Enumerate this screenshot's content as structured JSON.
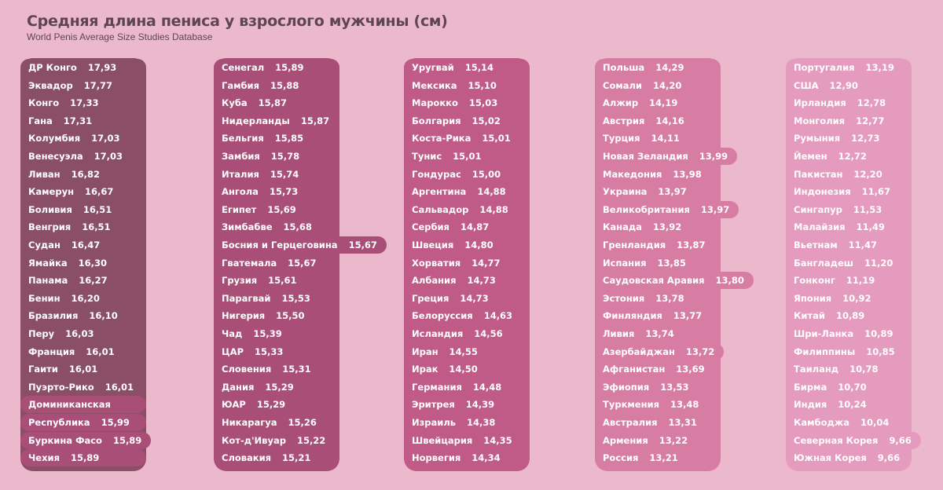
{
  "title": "Средняя длина пениса у взрослого мужчины (см)",
  "subtitle": "World Penis Average Size Studies Database",
  "colors": {
    "background": "#ecb8cc",
    "c1": "#8a4e66",
    "c2": "#a94e76",
    "c3": "#c05a86",
    "c4": "#d77da4",
    "c5": "#e59bbd",
    "text": "#ffffff",
    "title": "#5e4651"
  },
  "chart_data": {
    "type": "bar",
    "title": "Средняя длина пениса у взрослого мужчины (см)",
    "subtitle": "World Penis Average Size Studies Database",
    "columns": [
      {
        "color": "c1",
        "rows": [
          {
            "country": "ДР Конго",
            "value": "17,93",
            "v": 17.93
          },
          {
            "country": "Эквадор",
            "value": "17,77",
            "v": 17.77
          },
          {
            "country": "Конго",
            "value": "17,33",
            "v": 17.33
          },
          {
            "country": "Гана",
            "value": "17,31",
            "v": 17.31
          },
          {
            "country": "Колумбия",
            "value": "17,03",
            "v": 17.03
          },
          {
            "country": "Венесуэла",
            "value": "17,03",
            "v": 17.03
          },
          {
            "country": "Ливан",
            "value": "16,82",
            "v": 16.82
          },
          {
            "country": "Камерун",
            "value": "16,67",
            "v": 16.67
          },
          {
            "country": "Боливия",
            "value": "16,51",
            "v": 16.51
          },
          {
            "country": "Венгрия",
            "value": "16,51",
            "v": 16.51
          },
          {
            "country": "Судан",
            "value": "16,47",
            "v": 16.47
          },
          {
            "country": "Ямайка",
            "value": "16,30",
            "v": 16.3
          },
          {
            "country": "Панама",
            "value": "16,27",
            "v": 16.27
          },
          {
            "country": "Бенин",
            "value": "16,20",
            "v": 16.2
          },
          {
            "country": "Бразилия",
            "value": "16,10",
            "v": 16.1
          },
          {
            "country": "Перу",
            "value": "16,03",
            "v": 16.03
          },
          {
            "country": "Франция",
            "value": "16,01",
            "v": 16.01
          },
          {
            "country": "Гаити",
            "value": "16,01",
            "v": 16.01
          },
          {
            "country": "Пуэрто-Рико",
            "value": "16,01",
            "v": 16.01
          },
          {
            "country": "Доминиканская",
            "value": "",
            "v": 15.99,
            "color": "c2"
          },
          {
            "country": "Республика",
            "value": "15,99",
            "v": 15.99,
            "color": "c2"
          },
          {
            "country": "Буркина Фасо",
            "value": "15,89",
            "v": 15.89,
            "color": "c2"
          },
          {
            "country": "Чехия",
            "value": "15,89",
            "v": 15.89,
            "color": "c2"
          }
        ]
      },
      {
        "color": "c2",
        "rows": [
          {
            "country": "Сенегал",
            "value": "15,89",
            "v": 15.89
          },
          {
            "country": "Гамбия",
            "value": "15,88",
            "v": 15.88
          },
          {
            "country": "Куба",
            "value": "15,87",
            "v": 15.87
          },
          {
            "country": "Нидерланды",
            "value": "15,87",
            "v": 15.87
          },
          {
            "country": "Бельгия",
            "value": "15,85",
            "v": 15.85
          },
          {
            "country": "Замбия",
            "value": "15,78",
            "v": 15.78
          },
          {
            "country": "Италия",
            "value": "15,74",
            "v": 15.74
          },
          {
            "country": "Ангола",
            "value": "15,73",
            "v": 15.73
          },
          {
            "country": "Египет",
            "value": "15,69",
            "v": 15.69
          },
          {
            "country": "Зимбабве",
            "value": "15,68",
            "v": 15.68
          },
          {
            "country": "Босния и Герцеговина",
            "value": "15,67",
            "v": 15.67
          },
          {
            "country": "Гватемала",
            "value": "15,67",
            "v": 15.67
          },
          {
            "country": "Грузия",
            "value": "15,61",
            "v": 15.61
          },
          {
            "country": "Парагвай",
            "value": "15,53",
            "v": 15.53
          },
          {
            "country": "Нигерия",
            "value": "15,50",
            "v": 15.5
          },
          {
            "country": "Чад",
            "value": "15,39",
            "v": 15.39
          },
          {
            "country": "ЦАР",
            "value": "15,33",
            "v": 15.33
          },
          {
            "country": "Словения",
            "value": "15,31",
            "v": 15.31
          },
          {
            "country": "Дания",
            "value": "15,29",
            "v": 15.29
          },
          {
            "country": "ЮАР",
            "value": "15,29",
            "v": 15.29
          },
          {
            "country": "Никарагуа",
            "value": "15,26",
            "v": 15.26
          },
          {
            "country": "Кот-д'Ивуар",
            "value": "15,22",
            "v": 15.22
          },
          {
            "country": "Словакия",
            "value": "15,21",
            "v": 15.21
          }
        ]
      },
      {
        "color": "c3",
        "rows": [
          {
            "country": "Уругвай",
            "value": "15,14",
            "v": 15.14
          },
          {
            "country": "Мексика",
            "value": "15,10",
            "v": 15.1
          },
          {
            "country": "Марокко",
            "value": "15,03",
            "v": 15.03
          },
          {
            "country": "Болгария",
            "value": "15,02",
            "v": 15.02
          },
          {
            "country": "Коста-Рика",
            "value": "15,01",
            "v": 15.01
          },
          {
            "country": "Тунис",
            "value": "15,01",
            "v": 15.01
          },
          {
            "country": "Гондурас",
            "value": "15,00",
            "v": 15.0
          },
          {
            "country": "Аргентина",
            "value": "14,88",
            "v": 14.88
          },
          {
            "country": "Сальвадор",
            "value": "14,88",
            "v": 14.88
          },
          {
            "country": "Сербия",
            "value": "14,87",
            "v": 14.87
          },
          {
            "country": "Швеция",
            "value": "14,80",
            "v": 14.8
          },
          {
            "country": "Хорватия",
            "value": "14,77",
            "v": 14.77
          },
          {
            "country": "Албания",
            "value": "14,73",
            "v": 14.73
          },
          {
            "country": "Греция",
            "value": "14,73",
            "v": 14.73
          },
          {
            "country": "Белоруссия",
            "value": "14,63",
            "v": 14.63
          },
          {
            "country": "Исландия",
            "value": "14,56",
            "v": 14.56
          },
          {
            "country": "Иран",
            "value": "14,55",
            "v": 14.55
          },
          {
            "country": "Ирак",
            "value": "14,50",
            "v": 14.5
          },
          {
            "country": "Германия",
            "value": "14,48",
            "v": 14.48
          },
          {
            "country": "Эритрея",
            "value": "14,39",
            "v": 14.39
          },
          {
            "country": "Израиль",
            "value": "14,38",
            "v": 14.38
          },
          {
            "country": "Швейцария",
            "value": "14,35",
            "v": 14.35
          },
          {
            "country": "Норвегия",
            "value": "14,34",
            "v": 14.34
          }
        ]
      },
      {
        "color": "c4",
        "rows": [
          {
            "country": "Польша",
            "value": "14,29",
            "v": 14.29
          },
          {
            "country": "Сомали",
            "value": "14,20",
            "v": 14.2
          },
          {
            "country": "Алжир",
            "value": "14,19",
            "v": 14.19
          },
          {
            "country": "Австрия",
            "value": "14,16",
            "v": 14.16
          },
          {
            "country": "Турция",
            "value": "14,11",
            "v": 14.11
          },
          {
            "country": "Новая Зеландия",
            "value": "13,99",
            "v": 13.99
          },
          {
            "country": "Македония",
            "value": "13,98",
            "v": 13.98
          },
          {
            "country": "Украина",
            "value": "13,97",
            "v": 13.97
          },
          {
            "country": "Великобритания",
            "value": "13,97",
            "v": 13.97
          },
          {
            "country": "Канада",
            "value": "13,92",
            "v": 13.92
          },
          {
            "country": "Гренландия",
            "value": "13,87",
            "v": 13.87
          },
          {
            "country": "Испания",
            "value": "13,85",
            "v": 13.85
          },
          {
            "country": "Саудовская Аравия",
            "value": "13,80",
            "v": 13.8
          },
          {
            "country": "Эстония",
            "value": "13,78",
            "v": 13.78
          },
          {
            "country": "Финляндия",
            "value": "13,77",
            "v": 13.77
          },
          {
            "country": "Ливия",
            "value": "13,74",
            "v": 13.74
          },
          {
            "country": "Азербайджан",
            "value": "13,72",
            "v": 13.72
          },
          {
            "country": "Афганистан",
            "value": "13,69",
            "v": 13.69
          },
          {
            "country": "Эфиопия",
            "value": "13,53",
            "v": 13.53
          },
          {
            "country": "Туркмения",
            "value": "13,48",
            "v": 13.48
          },
          {
            "country": "Австралия",
            "value": "13,31",
            "v": 13.31
          },
          {
            "country": "Армения",
            "value": "13,22",
            "v": 13.22
          },
          {
            "country": "Россия",
            "value": "13,21",
            "v": 13.21
          }
        ]
      },
      {
        "color": "c5",
        "rows": [
          {
            "country": "Португалия",
            "value": "13,19",
            "v": 13.19
          },
          {
            "country": "США",
            "value": "12,90",
            "v": 12.9
          },
          {
            "country": "Ирландия",
            "value": "12,78",
            "v": 12.78
          },
          {
            "country": "Монголия",
            "value": "12,77",
            "v": 12.77
          },
          {
            "country": "Румыния",
            "value": "12,73",
            "v": 12.73
          },
          {
            "country": "Йемен",
            "value": "12,72",
            "v": 12.72
          },
          {
            "country": "Пакистан",
            "value": "12,20",
            "v": 12.2
          },
          {
            "country": "Индонезия",
            "value": "11,67",
            "v": 11.67
          },
          {
            "country": "Сингапур",
            "value": "11,53",
            "v": 11.53
          },
          {
            "country": "Малайзия",
            "value": "11,49",
            "v": 11.49
          },
          {
            "country": "Вьетнам",
            "value": "11,47",
            "v": 11.47
          },
          {
            "country": "Бангладеш",
            "value": "11,20",
            "v": 11.2
          },
          {
            "country": "Гонконг",
            "value": "11,19",
            "v": 11.19
          },
          {
            "country": "Япония",
            "value": "10,92",
            "v": 10.92
          },
          {
            "country": "Китай",
            "value": "10,89",
            "v": 10.89
          },
          {
            "country": "Шри-Ланка",
            "value": "10,89",
            "v": 10.89
          },
          {
            "country": "Филиппины",
            "value": "10,85",
            "v": 10.85
          },
          {
            "country": "Таиланд",
            "value": "10,78",
            "v": 10.78
          },
          {
            "country": "Бирма",
            "value": "10,70",
            "v": 10.7
          },
          {
            "country": "Индия",
            "value": "10,24",
            "v": 10.24
          },
          {
            "country": "Камбоджа",
            "value": "10,04",
            "v": 10.04
          },
          {
            "country": "Северная Корея",
            "value": "9,66",
            "v": 9.66
          },
          {
            "country": "Южная Корея",
            "value": "9,66",
            "v": 9.66
          }
        ]
      }
    ]
  }
}
